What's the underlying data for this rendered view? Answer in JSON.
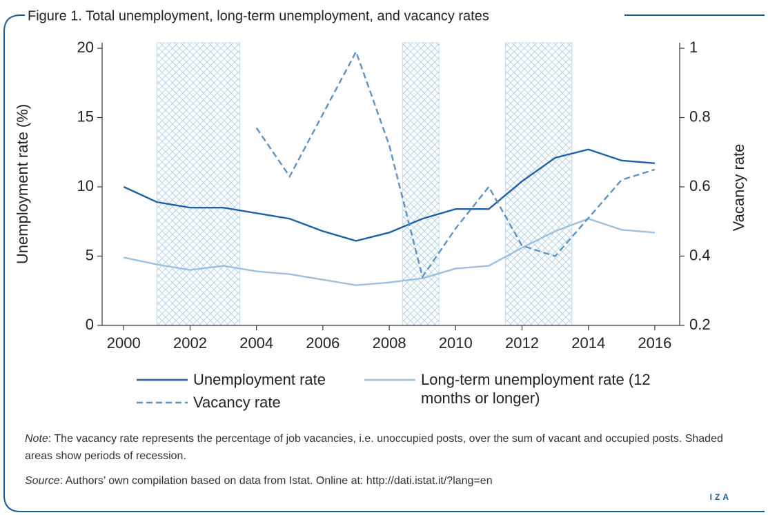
{
  "chart_data": {
    "type": "line",
    "title": "Figure 1. Total unemployment, long-term unemployment, and vacancy rates",
    "y_label": "Unemployment rate (%)",
    "y2_label": "Vacancy rate",
    "x": [
      2000,
      2001,
      2002,
      2003,
      2004,
      2005,
      2006,
      2007,
      2008,
      2009,
      2010,
      2011,
      2012,
      2013,
      2014,
      2015,
      2016
    ],
    "series": [
      {
        "name": "Unemployment rate",
        "color": "#1f5fa6",
        "dash": false,
        "values": [
          10.0,
          8.9,
          8.5,
          8.5,
          8.1,
          7.7,
          6.8,
          6.1,
          6.7,
          7.7,
          8.4,
          8.4,
          10.4,
          12.1,
          12.7,
          11.9,
          11.7
        ]
      },
      {
        "name": "Long-term unemployment rate (12 months or longer)",
        "color": "#9cbfdf",
        "dash": false,
        "values": [
          4.9,
          4.4,
          4.0,
          4.3,
          3.9,
          3.7,
          3.3,
          2.9,
          3.1,
          3.4,
          4.1,
          4.3,
          5.6,
          6.8,
          7.7,
          6.9,
          6.7
        ]
      },
      {
        "name": "Vacancy rate",
        "color": "#5b93c7",
        "dash": true,
        "axis": "y2",
        "values": [
          null,
          null,
          null,
          null,
          0.77,
          0.63,
          0.81,
          0.99,
          0.72,
          0.34,
          0.48,
          0.6,
          0.43,
          0.4,
          0.51,
          0.62,
          0.65
        ]
      }
    ],
    "shaded_periods": [
      [
        2001,
        2003.5
      ],
      [
        2008.4,
        2009.5
      ],
      [
        2011.5,
        2013.5
      ]
    ],
    "xlim": [
      1999.35,
      2016.75
    ],
    "xticks": [
      2000,
      2002,
      2004,
      2006,
      2008,
      2010,
      2012,
      2014,
      2016
    ],
    "ylim": [
      0,
      20.4
    ],
    "yticks": [
      0,
      5,
      10,
      15,
      20
    ],
    "y2lim": [
      0.2,
      1.016
    ],
    "y2ticks": [
      0.2,
      0.4,
      0.6,
      0.8,
      1
    ],
    "note_label": "Note",
    "note_text": ": The vacancy rate represents the percentage of job vacancies, i.e. unoccupied posts, over the sum of vacant and occupied posts. Shaded areas show periods of recession.",
    "source_label": "Source",
    "source_text": ": Authors’ own compilation based on data from Istat. Online at: http://dati.istat.it/?lang=en",
    "logo": "IZA"
  }
}
